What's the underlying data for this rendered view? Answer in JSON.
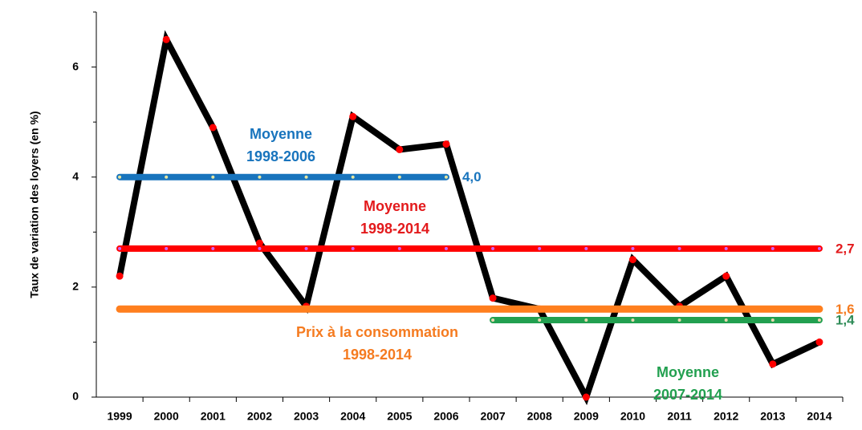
{
  "chart_data": {
    "type": "line",
    "ylabel": "Taux de variation des loyers  (en %)",
    "categories": [
      "1999",
      "2000",
      "2001",
      "2002",
      "2003",
      "2004",
      "2005",
      "2006",
      "2007",
      "2008",
      "2009",
      "2010",
      "2011",
      "2012",
      "2013",
      "2014"
    ],
    "ylim": [
      0,
      7
    ],
    "yticks": [
      0,
      2,
      4,
      6
    ],
    "yticks_minor": [
      1,
      3,
      5,
      7
    ],
    "series": [
      {
        "color": "#000000",
        "marker_color": "#ff0000",
        "width": 8,
        "values": [
          2.2,
          6.5,
          4.9,
          2.8,
          1.65,
          5.1,
          4.5,
          4.6,
          1.8,
          1.6,
          0,
          2.5,
          1.65,
          2.2,
          0.6,
          1.0
        ]
      },
      {
        "color": "#1874bd",
        "marker_color": "#e6e6a0",
        "width": 8,
        "value_label": "4,0",
        "label_color": "#1874bd",
        "values": [
          4.0,
          4.0,
          4.0,
          4.0,
          4.0,
          4.0,
          4.0,
          4.0,
          null,
          null,
          null,
          null,
          null,
          null,
          null,
          null
        ]
      },
      {
        "color": "#ff0000",
        "marker_color": "#cc66ff",
        "width": 8,
        "value_label": "2,7",
        "label_color": "#e31a1c",
        "values": [
          2.7,
          2.7,
          2.7,
          2.7,
          2.7,
          2.7,
          2.7,
          2.7,
          2.7,
          2.7,
          2.7,
          2.7,
          2.7,
          2.7,
          2.7,
          2.7
        ]
      },
      {
        "color": "#ff7f1e",
        "width": 9,
        "value_label": "1,6",
        "label_color": "#f57b20",
        "values": [
          1.6,
          1.6,
          1.6,
          1.6,
          1.6,
          1.6,
          1.6,
          1.6,
          1.6,
          1.6,
          1.6,
          1.6,
          1.6,
          1.6,
          1.6,
          1.6
        ]
      },
      {
        "color": "#22a050",
        "marker_color": "#e8d8b0",
        "width": 8,
        "value_label": "1,4",
        "label_color": "#2e8b57",
        "values": [
          null,
          null,
          null,
          null,
          null,
          null,
          null,
          null,
          1.4,
          1.4,
          1.4,
          1.4,
          1.4,
          1.4,
          1.4,
          1.4
        ]
      }
    ],
    "annotations": [
      {
        "lines": [
          "Moyenne",
          "1998-2006"
        ],
        "color": "#1874bd"
      },
      {
        "lines": [
          "Moyenne",
          "1998-2014"
        ],
        "color": "#e31a1c"
      },
      {
        "lines": [
          "Prix à la consommation",
          "1998-2014"
        ],
        "color": "#f57b20"
      },
      {
        "lines": [
          "Moyenne",
          "2007-2014"
        ],
        "color": "#22a050"
      }
    ]
  }
}
